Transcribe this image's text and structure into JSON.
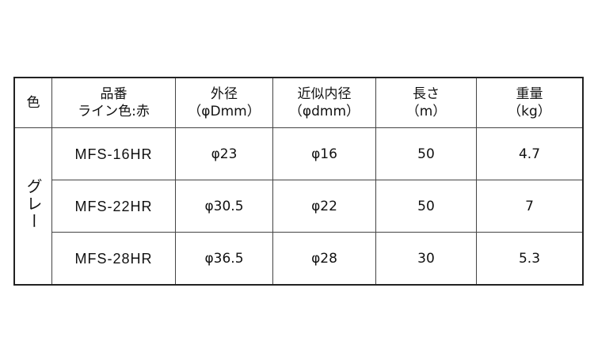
{
  "header": {
    "color": "色",
    "part_no_line1": "品番",
    "part_no_line2": "ライン色:赤",
    "outer_line1": "外径",
    "outer_line2": "（φDmm）",
    "inner_line1": "近似内径",
    "inner_line2": "（φdmm）",
    "length_line1": "長さ",
    "length_line2": "（m）",
    "weight_line1": "重量",
    "weight_line2": "（kg）"
  },
  "color_value": "グレー",
  "rows": [
    {
      "part_no": "MFS-16HR",
      "outer": "φ23",
      "inner": "φ16",
      "length": "50",
      "weight": "4.7"
    },
    {
      "part_no": "MFS-22HR",
      "outer": "φ30.5",
      "inner": "φ22",
      "length": "50",
      "weight": "7"
    },
    {
      "part_no": "MFS-28HR",
      "outer": "φ36.5",
      "inner": "φ28",
      "length": "30",
      "weight": "5.3"
    }
  ]
}
